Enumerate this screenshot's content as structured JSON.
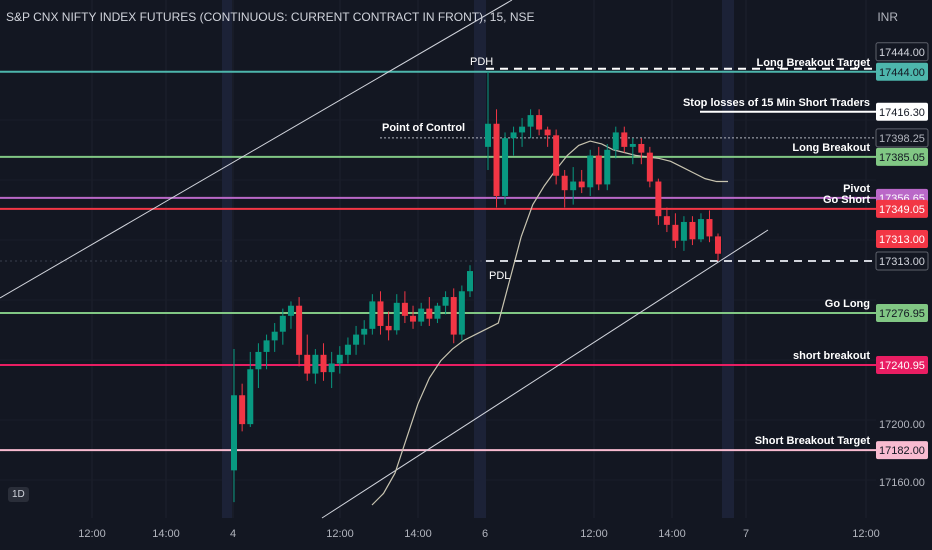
{
  "header": {
    "title": "S&P CNX NIFTY INDEX FUTURES (CONTINUOUS: CURRENT CONTRACT IN FRONT), 15, NSE",
    "currency": "INR",
    "interval_badge": "1D"
  },
  "chart_data": {
    "type": "candlestick",
    "title": "S&P CNX NIFTY INDEX FUTURES (CONTINUOUS: CURRENT CONTRACT IN FRONT), 15, NSE",
    "ylim": [
      17144,
      17466
    ],
    "y_ticks": [
      "17200.00",
      "17160.00"
    ],
    "x_ticks": [
      "12:00",
      "14:00",
      "4",
      "12:00",
      "14:00",
      "6",
      "12:00",
      "14:00",
      "7",
      "12:00"
    ],
    "levels": [
      {
        "label": "Long Breakout Target",
        "value": 17444.0,
        "price": "17444.00",
        "color": "#4db6ac",
        "style": "solid",
        "tag_fill": "#4db6ac",
        "tag_text": "#131722"
      },
      {
        "label": "Stop losses of 15 Min Short Traders",
        "value": 17416.3,
        "price": "17416.30",
        "color": "#ffffff",
        "style": "solid-short",
        "tag_fill": "#ffffff",
        "tag_text": "#131722"
      },
      {
        "label": "Point of Control",
        "value": 17398.25,
        "price": "17398.25",
        "color": "#b2b5be",
        "style": "dotted",
        "tag_fill": "#131722",
        "tag_text": "#b2b5be"
      },
      {
        "label": "Long Breakout",
        "value": 17385.05,
        "price": "17385.05",
        "color": "#81c784",
        "style": "solid",
        "tag_fill": "#81c784",
        "tag_text": "#131722"
      },
      {
        "label": "Pivot",
        "value": 17356.65,
        "price": "17356.65",
        "color": "#ba68c8",
        "style": "solid",
        "tag_fill": "#ba68c8",
        "tag_text": "#ffffff"
      },
      {
        "label": "Go Short",
        "value": 17349.05,
        "price": "17349.05",
        "color": "#f23645",
        "style": "solid",
        "tag_fill": "#f23645",
        "tag_text": "#ffffff"
      },
      {
        "label": "",
        "value": 17313.0,
        "price": "17313.00",
        "color": "#f23645",
        "style": "none",
        "tag_fill": "#f23645",
        "tag_text": "#ffffff"
      },
      {
        "label": "PDL",
        "value": 17313.0,
        "price": "17313.00",
        "color": "#d1d4dc",
        "style": "dashed",
        "tag_fill": "#131722",
        "tag_text": "#d1d4dc"
      },
      {
        "label": "Go Long",
        "value": 17276.95,
        "price": "17276.95",
        "color": "#81c784",
        "style": "solid",
        "tag_fill": "#81c784",
        "tag_text": "#131722"
      },
      {
        "label": "short breakout",
        "value": 17240.95,
        "price": "17240.95",
        "color": "#e91e63",
        "style": "solid",
        "tag_fill": "#e91e63",
        "tag_text": "#ffffff"
      },
      {
        "label": "Short  Breakout Target",
        "value": 17182.0,
        "price": "17182.00",
        "color": "#f8bbd0",
        "style": "solid",
        "tag_fill": "#f8bbd0",
        "tag_text": "#131722"
      }
    ],
    "pdh_label": "PDH",
    "candles": [
      [
        17168,
        17252,
        17146,
        17220
      ],
      [
        17220,
        17228,
        17195,
        17200
      ],
      [
        17200,
        17250,
        17198,
        17238
      ],
      [
        17238,
        17256,
        17225,
        17250
      ],
      [
        17250,
        17262,
        17238,
        17258
      ],
      [
        17258,
        17270,
        17250,
        17264
      ],
      [
        17264,
        17280,
        17255,
        17275
      ],
      [
        17275,
        17285,
        17266,
        17282
      ],
      [
        17282,
        17288,
        17240,
        17248
      ],
      [
        17248,
        17262,
        17230,
        17235
      ],
      [
        17235,
        17252,
        17228,
        17248
      ],
      [
        17248,
        17256,
        17230,
        17236
      ],
      [
        17236,
        17250,
        17225,
        17242
      ],
      [
        17242,
        17254,
        17235,
        17248
      ],
      [
        17248,
        17260,
        17242,
        17255
      ],
      [
        17255,
        17268,
        17248,
        17262
      ],
      [
        17262,
        17272,
        17255,
        17266
      ],
      [
        17266,
        17290,
        17262,
        17285
      ],
      [
        17285,
        17292,
        17262,
        17268
      ],
      [
        17268,
        17278,
        17258,
        17265
      ],
      [
        17265,
        17290,
        17262,
        17284
      ],
      [
        17284,
        17292,
        17270,
        17275
      ],
      [
        17275,
        17282,
        17266,
        17271
      ],
      [
        17271,
        17284,
        17268,
        17280
      ],
      [
        17280,
        17288,
        17268,
        17273
      ],
      [
        17273,
        17284,
        17270,
        17282
      ],
      [
        17282,
        17292,
        17276,
        17288
      ],
      [
        17288,
        17294,
        17256,
        17262
      ],
      [
        17262,
        17296,
        17258,
        17292
      ],
      [
        17292,
        17310,
        17288,
        17306
      ],
      [
        17392,
        17444,
        17376,
        17408
      ],
      [
        17408,
        17418,
        17350,
        17358
      ],
      [
        17358,
        17402,
        17352,
        17398
      ],
      [
        17398,
        17406,
        17386,
        17402
      ],
      [
        17402,
        17412,
        17392,
        17406
      ],
      [
        17406,
        17418,
        17398,
        17414
      ],
      [
        17414,
        17418,
        17400,
        17404
      ],
      [
        17404,
        17406,
        17392,
        17400
      ],
      [
        17400,
        17404,
        17366,
        17372
      ],
      [
        17372,
        17376,
        17350,
        17362
      ],
      [
        17362,
        17378,
        17352,
        17368
      ],
      [
        17368,
        17376,
        17360,
        17364
      ],
      [
        17364,
        17390,
        17358,
        17386
      ],
      [
        17386,
        17392,
        17362,
        17366
      ],
      [
        17366,
        17394,
        17362,
        17390
      ],
      [
        17390,
        17406,
        17384,
        17402
      ],
      [
        17402,
        17406,
        17388,
        17392
      ],
      [
        17392,
        17398,
        17380,
        17394
      ],
      [
        17394,
        17398,
        17380,
        17388
      ],
      [
        17388,
        17392,
        17364,
        17368
      ],
      [
        17368,
        17370,
        17338,
        17344
      ],
      [
        17344,
        17350,
        17333,
        17338
      ],
      [
        17338,
        17346,
        17322,
        17327
      ],
      [
        17327,
        17344,
        17320,
        17340
      ],
      [
        17340,
        17344,
        17324,
        17328
      ],
      [
        17328,
        17346,
        17326,
        17342
      ],
      [
        17342,
        17348,
        17326,
        17330
      ],
      [
        17330,
        17332,
        17313,
        17318
      ]
    ],
    "vwap": [
      [
        17144,
        17152,
        17166,
        17190,
        17214,
        17232,
        17244,
        17252,
        17258,
        17262,
        17266,
        17270,
        17300,
        17330,
        17352,
        17365,
        17376,
        17386,
        17393,
        17396,
        17394,
        17390,
        17388,
        17386,
        17385,
        17384,
        17382,
        17378,
        17374,
        17370,
        17368,
        17368
      ]
    ]
  }
}
